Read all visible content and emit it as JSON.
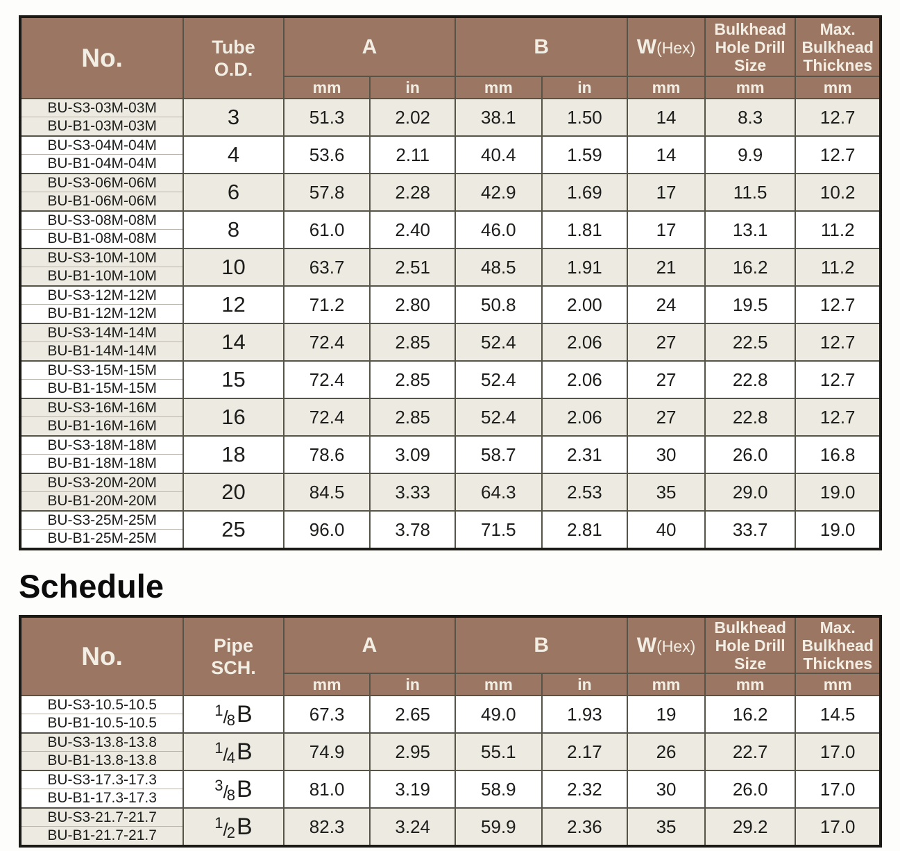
{
  "schedule_heading": "Schedule",
  "colors": {
    "header_bg": "#9A7663",
    "header_text": "#F3EEE4",
    "shaded_row": "#EDEAE2",
    "plain_row": "#FFFFFF",
    "outer_border": "#1C1A17",
    "grid_line": "#565349",
    "text": "#1D1D1B",
    "code_divider": "#B9B5AD"
  },
  "metric_table": {
    "header": {
      "no": "No.",
      "dim_line1": "Tube",
      "dim_line2": "O.D.",
      "a": "A",
      "b": "B",
      "w": "W",
      "w_sub": "(Hex)",
      "bulkhead": "Bulkhead Hole Drill Size",
      "max": "Max. Bulkhead Thicknes"
    },
    "units": [
      "mm",
      "in",
      "mm",
      "in",
      "mm",
      "mm",
      "mm"
    ],
    "first_row_shaded": true,
    "rows": [
      {
        "codes": [
          "BU-S3-03M-03M",
          "BU-B1-03M-03M"
        ],
        "size": "3",
        "values": [
          "51.3",
          "2.02",
          "38.1",
          "1.50",
          "14",
          "8.3",
          "12.7"
        ]
      },
      {
        "codes": [
          "BU-S3-04M-04M",
          "BU-B1-04M-04M"
        ],
        "size": "4",
        "values": [
          "53.6",
          "2.11",
          "40.4",
          "1.59",
          "14",
          "9.9",
          "12.7"
        ]
      },
      {
        "codes": [
          "BU-S3-06M-06M",
          "BU-B1-06M-06M"
        ],
        "size": "6",
        "values": [
          "57.8",
          "2.28",
          "42.9",
          "1.69",
          "17",
          "11.5",
          "10.2"
        ]
      },
      {
        "codes": [
          "BU-S3-08M-08M",
          "BU-B1-08M-08M"
        ],
        "size": "8",
        "values": [
          "61.0",
          "2.40",
          "46.0",
          "1.81",
          "17",
          "13.1",
          "11.2"
        ]
      },
      {
        "codes": [
          "BU-S3-10M-10M",
          "BU-B1-10M-10M"
        ],
        "size": "10",
        "values": [
          "63.7",
          "2.51",
          "48.5",
          "1.91",
          "21",
          "16.2",
          "11.2"
        ]
      },
      {
        "codes": [
          "BU-S3-12M-12M",
          "BU-B1-12M-12M"
        ],
        "size": "12",
        "values": [
          "71.2",
          "2.80",
          "50.8",
          "2.00",
          "24",
          "19.5",
          "12.7"
        ]
      },
      {
        "codes": [
          "BU-S3-14M-14M",
          "BU-B1-14M-14M"
        ],
        "size": "14",
        "values": [
          "72.4",
          "2.85",
          "52.4",
          "2.06",
          "27",
          "22.5",
          "12.7"
        ]
      },
      {
        "codes": [
          "BU-S3-15M-15M",
          "BU-B1-15M-15M"
        ],
        "size": "15",
        "values": [
          "72.4",
          "2.85",
          "52.4",
          "2.06",
          "27",
          "22.8",
          "12.7"
        ]
      },
      {
        "codes": [
          "BU-S3-16M-16M",
          "BU-B1-16M-16M"
        ],
        "size": "16",
        "values": [
          "72.4",
          "2.85",
          "52.4",
          "2.06",
          "27",
          "22.8",
          "12.7"
        ]
      },
      {
        "codes": [
          "BU-S3-18M-18M",
          "BU-B1-18M-18M"
        ],
        "size": "18",
        "values": [
          "78.6",
          "3.09",
          "58.7",
          "2.31",
          "30",
          "26.0",
          "16.8"
        ]
      },
      {
        "codes": [
          "BU-S3-20M-20M",
          "BU-B1-20M-20M"
        ],
        "size": "20",
        "values": [
          "84.5",
          "3.33",
          "64.3",
          "2.53",
          "35",
          "29.0",
          "19.0"
        ]
      },
      {
        "codes": [
          "BU-S3-25M-25M",
          "BU-B1-25M-25M"
        ],
        "size": "25",
        "values": [
          "96.0",
          "3.78",
          "71.5",
          "2.81",
          "40",
          "33.7",
          "19.0"
        ]
      }
    ]
  },
  "schedule_table": {
    "header": {
      "no": "No.",
      "dim_line1": "Pipe",
      "dim_line2": "SCH.",
      "a": "A",
      "b": "B",
      "w": "W",
      "w_sub": "(Hex)",
      "bulkhead": "Bulkhead Hole Drill Size",
      "max": "Max. Bulkhead Thicknes"
    },
    "units": [
      "mm",
      "in",
      "mm",
      "in",
      "mm",
      "mm",
      "mm"
    ],
    "first_row_shaded": false,
    "rows": [
      {
        "codes": [
          "BU-S3-10.5-10.5",
          "BU-B1-10.5-10.5"
        ],
        "size": {
          "num": "1",
          "den": "8",
          "suffix": "B"
        },
        "values": [
          "67.3",
          "2.65",
          "49.0",
          "1.93",
          "19",
          "16.2",
          "14.5"
        ]
      },
      {
        "codes": [
          "BU-S3-13.8-13.8",
          "BU-B1-13.8-13.8"
        ],
        "size": {
          "num": "1",
          "den": "4",
          "suffix": "B"
        },
        "values": [
          "74.9",
          "2.95",
          "55.1",
          "2.17",
          "26",
          "22.7",
          "17.0"
        ]
      },
      {
        "codes": [
          "BU-S3-17.3-17.3",
          "BU-B1-17.3-17.3"
        ],
        "size": {
          "num": "3",
          "den": "8",
          "suffix": "B"
        },
        "values": [
          "81.0",
          "3.19",
          "58.9",
          "2.32",
          "30",
          "26.0",
          "17.0"
        ]
      },
      {
        "codes": [
          "BU-S3-21.7-21.7",
          "BU-B1-21.7-21.7"
        ],
        "size": {
          "num": "1",
          "den": "2",
          "suffix": "B"
        },
        "values": [
          "82.3",
          "3.24",
          "59.9",
          "2.36",
          "35",
          "29.2",
          "17.0"
        ]
      }
    ]
  },
  "value_column_names": [
    "a-mm",
    "a-in",
    "b-mm",
    "b-in",
    "w-hex-mm",
    "bulkhead-hole-drill-size-mm",
    "max-bulkhead-thicknes-mm"
  ]
}
